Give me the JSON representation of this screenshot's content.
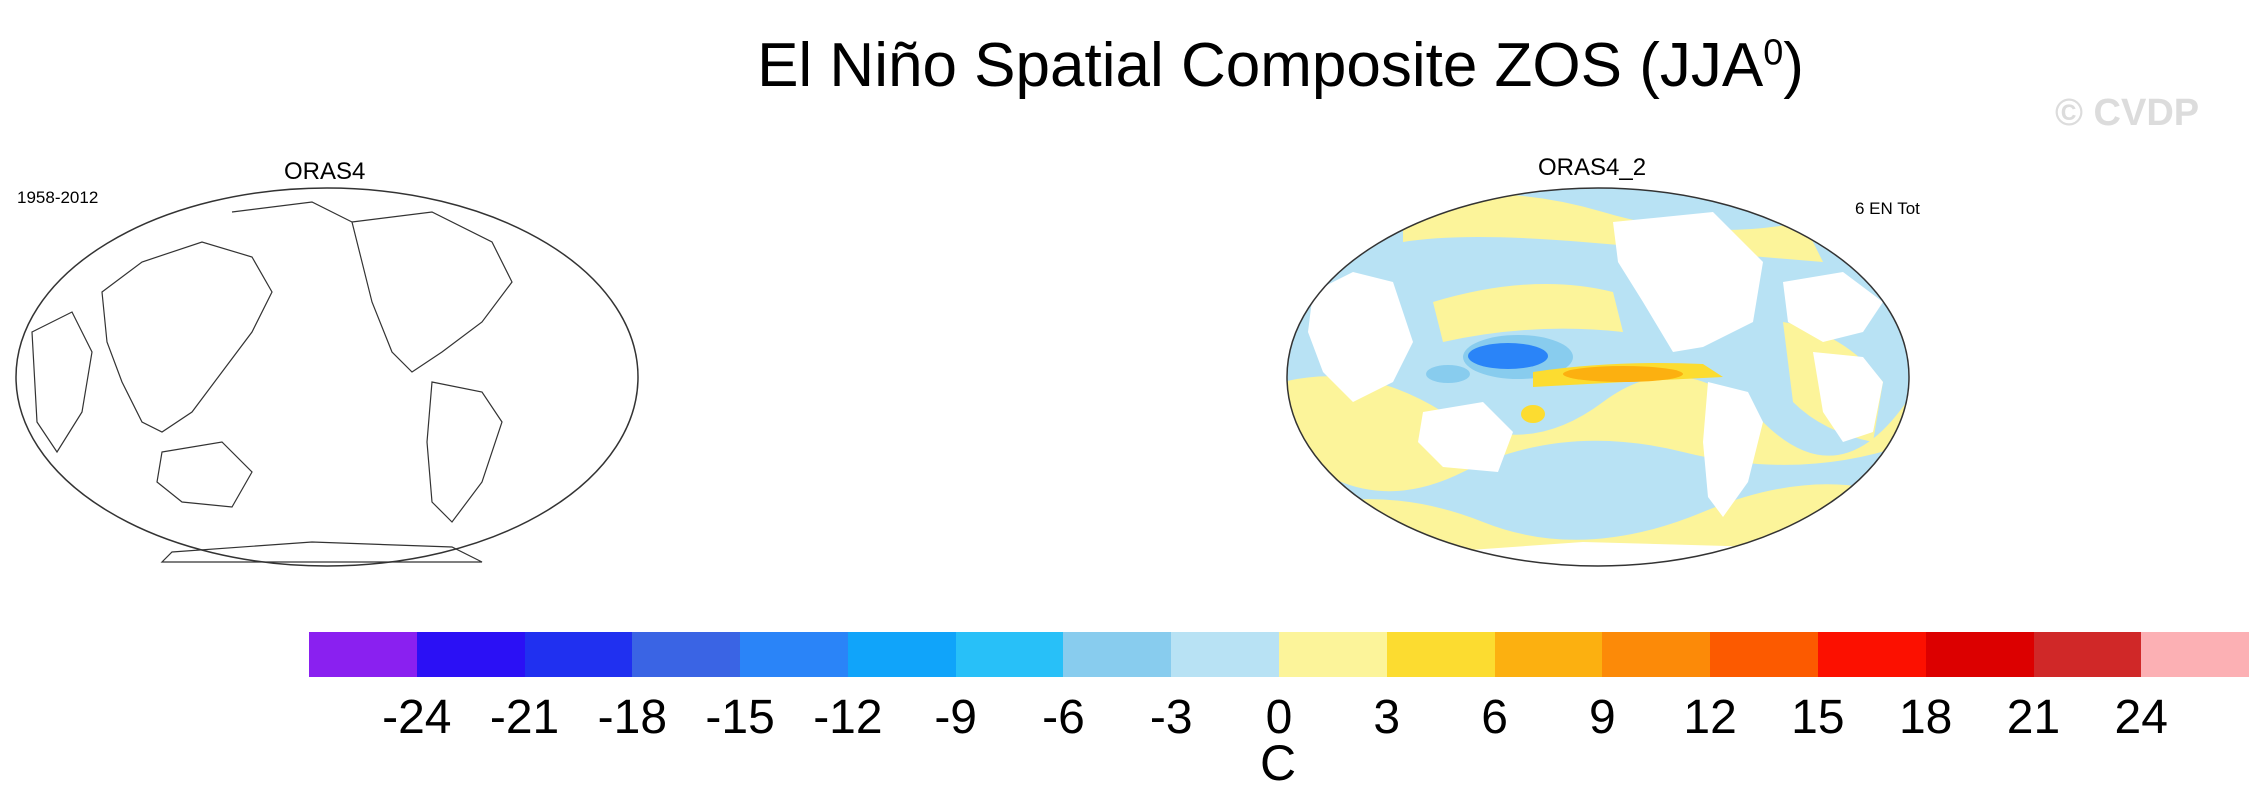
{
  "title": "El Niño Spatial Composite ZOS (JJA",
  "title_sup": "0",
  "title_end": ")",
  "watermark": "© CVDP",
  "panels": [
    {
      "name": "ORAS4",
      "period": "1958-2012",
      "note": ""
    },
    {
      "name": "ORAS4_2",
      "period": "",
      "note": "6 EN Tot"
    }
  ],
  "colorbar": {
    "colors": [
      "#8a20f0",
      "#2b10f5",
      "#2030f0",
      "#3a64e4",
      "#2a84f8",
      "#10a4fa",
      "#28c0f8",
      "#88ccee",
      "#b8e2f4",
      "#fcf49a",
      "#fcdc30",
      "#fcb010",
      "#fc8a08",
      "#fc5a00",
      "#fc1000",
      "#dc0000",
      "#d02828",
      "#fcb0b4"
    ],
    "ticks": [
      "-24",
      "-21",
      "-18",
      "-15",
      "-12",
      "-9",
      "-6",
      "-3",
      "0",
      "3",
      "6",
      "9",
      "12",
      "15",
      "18",
      "21",
      "24"
    ],
    "units": "C"
  }
}
